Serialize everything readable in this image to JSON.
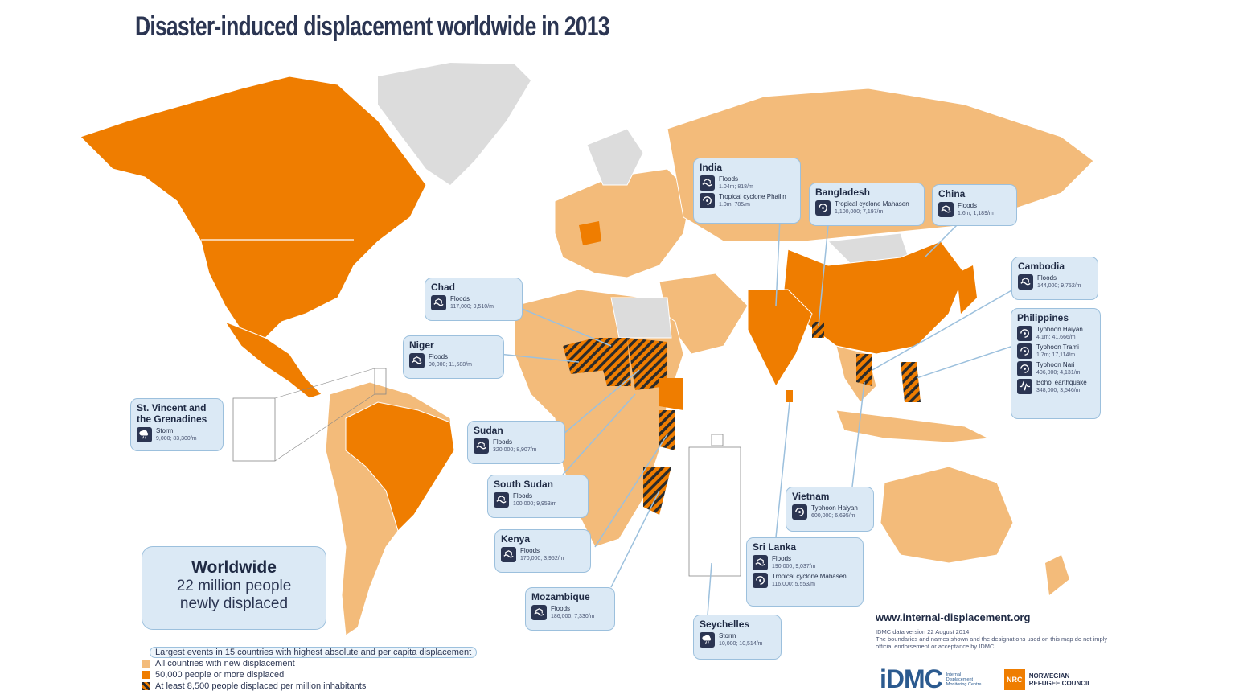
{
  "title": "Disaster-induced displacement worldwide in 2013",
  "colors": {
    "all_countries": "#f3bb7a",
    "large": "#ef7d00",
    "no_data": "#dcdcdc",
    "callout_bg": "#dbe9f5",
    "navy": "#2b3552"
  },
  "worldwide": {
    "heading": "Worldwide",
    "line1": "22 million people",
    "line2": "newly displaced"
  },
  "legend": {
    "lead": "Largest events in 15 countries with highest absolute and per capita displacement",
    "all": "All countries with new displacement",
    "large": "50,000 people or more displaced",
    "per_capita": "At least 8,500 people displaced per million inhabitants"
  },
  "source": {
    "url": "www.internal-displacement.org",
    "version": "IDMC data version 22 August 2014",
    "disclaimer": "The boundaries and names shown and the designations used on this map do not imply official endorsement or acceptance by IDMC."
  },
  "logos": {
    "idmc": "iDMC",
    "idmc_sub": "Internal Displacement Monitoring Centre",
    "nrc_mark": "NRC",
    "nrc_name_1": "NORWEGIAN",
    "nrc_name_2": "REFUGEE COUNCIL"
  },
  "callouts": {
    "india": {
      "name": "India",
      "ev1": {
        "type": "Floods",
        "detail": "1.04m; 818/m",
        "icon": "flood-icon"
      },
      "ev2": {
        "type": "Tropical cyclone Phailin",
        "detail": "1.0m; 785/m",
        "icon": "cyclone-icon"
      }
    },
    "bangladesh": {
      "name": "Bangladesh",
      "ev1": {
        "type": "Tropical cyclone Mahasen",
        "detail": "1,100,000; 7,197/m",
        "icon": "cyclone-icon"
      }
    },
    "china": {
      "name": "China",
      "ev1": {
        "type": "Floods",
        "detail": "1.6m; 1,189/m",
        "icon": "flood-icon"
      }
    },
    "cambodia": {
      "name": "Cambodia",
      "ev1": {
        "type": "Floods",
        "detail": "144,000; 9,752/m",
        "icon": "flood-icon"
      }
    },
    "philippines": {
      "name": "Philippines",
      "ev1": {
        "type": "Typhoon Haiyan",
        "detail": "4.1m; 41,666/m",
        "icon": "cyclone-icon"
      },
      "ev2": {
        "type": "Typhoon Trami",
        "detail": "1.7m; 17,114/m",
        "icon": "cyclone-icon"
      },
      "ev3": {
        "type": "Typhoon Nari",
        "detail": "406,000; 4,131/m",
        "icon": "cyclone-icon"
      },
      "ev4": {
        "type": "Bohol earthquake",
        "detail": "348,000; 3,546/m",
        "icon": "earthquake-icon"
      }
    },
    "chad": {
      "name": "Chad",
      "ev1": {
        "type": "Floods",
        "detail": "117,000; 9,510/m",
        "icon": "flood-icon"
      }
    },
    "niger": {
      "name": "Niger",
      "ev1": {
        "type": "Floods",
        "detail": "90,000; 11,588/m",
        "icon": "flood-icon"
      }
    },
    "svg": {
      "name1": "St. Vincent and",
      "name2": "the Grenadines",
      "ev1": {
        "type": "Storm",
        "detail": "9,000; 83,300/m",
        "icon": "storm-icon"
      }
    },
    "sudan": {
      "name": "Sudan",
      "ev1": {
        "type": "Floods",
        "detail": "320,000; 8,907/m",
        "icon": "flood-icon"
      }
    },
    "south_sudan": {
      "name": "South Sudan",
      "ev1": {
        "type": "Floods",
        "detail": "100,000; 9,953/m",
        "icon": "flood-icon"
      }
    },
    "kenya": {
      "name": "Kenya",
      "ev1": {
        "type": "Floods",
        "detail": "170,000; 3,952/m",
        "icon": "flood-icon"
      }
    },
    "mozambique": {
      "name": "Mozambique",
      "ev1": {
        "type": "Floods",
        "detail": "186,000; 7,330/m",
        "icon": "flood-icon"
      }
    },
    "vietnam": {
      "name": "Vietnam",
      "ev1": {
        "type": "Typhoon Haiyan",
        "detail": "600,000; 6,695/m",
        "icon": "cyclone-icon"
      }
    },
    "sri_lanka": {
      "name": "Sri Lanka",
      "ev1": {
        "type": "Floods",
        "detail": "190,000; 9,037/m",
        "icon": "flood-icon"
      },
      "ev2": {
        "type": "Tropical cyclone Mahasen",
        "detail": "116,000; 5,553/m",
        "icon": "cyclone-icon"
      }
    },
    "seychelles": {
      "name": "Seychelles",
      "ev1": {
        "type": "Storm",
        "detail": "10,000; 10,514/m",
        "icon": "storm-icon"
      }
    }
  }
}
